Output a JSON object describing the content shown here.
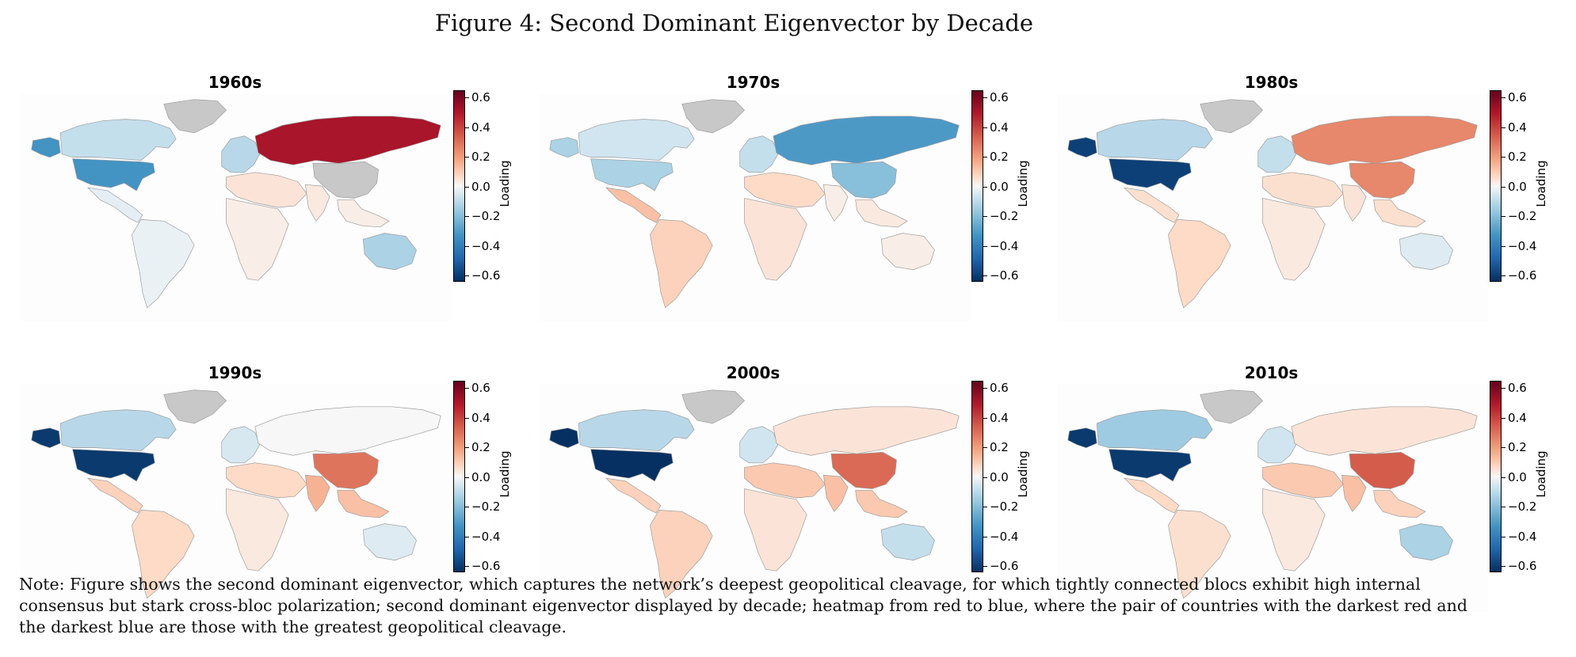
{
  "figure": {
    "title": "Figure 4: Second Dominant Eigenvector by Decade",
    "note": "Note: Figure shows the second dominant eigenvector, which captures the network’s deepest geopolitical cleavage, for which tightly connected blocs exhibit high internal consensus but stark cross-bloc polarization; second dominant eigenvector displayed by decade; heatmap from red to blue, where the pair of countries with the darkest red and the darkest blue are those with the greatest geopolitical cleavage."
  },
  "colorbar": {
    "label": "Loading",
    "ticks": [
      "0.6",
      "0.4",
      "0.2",
      "0.0",
      "−0.2",
      "−0.4",
      "−0.6"
    ],
    "range": [
      -0.65,
      0.65
    ],
    "colormap": "RdBu_r",
    "colors": {
      "dark_red": "#67001f",
      "neutral": "#f7f7f7",
      "dark_blue": "#053061",
      "no_data": "#c8c8c8"
    }
  },
  "panels": [
    {
      "title": "1960s",
      "regions": {
        "usa": -0.32,
        "canada": -0.08,
        "alaska": -0.32,
        "greenland": null,
        "latam": -0.03,
        "south_america": -0.02,
        "europe": -0.1,
        "russia": 0.5,
        "mena": 0.04,
        "africa": 0.02,
        "south_asia": 0.03,
        "china": null,
        "southeast_asia": 0.02,
        "australia": -0.12
      }
    },
    {
      "title": "1970s",
      "regions": {
        "usa": -0.12,
        "canada": -0.06,
        "alaska": -0.12,
        "greenland": null,
        "latam": 0.12,
        "south_america": 0.08,
        "europe": -0.08,
        "russia": -0.3,
        "mena": 0.06,
        "africa": 0.04,
        "south_asia": 0.02,
        "china": -0.18,
        "southeast_asia": 0.03,
        "australia": 0.02
      }
    },
    {
      "title": "1980s",
      "regions": {
        "usa": -0.6,
        "canada": -0.1,
        "alaska": -0.6,
        "greenland": null,
        "latam": 0.05,
        "south_america": 0.06,
        "europe": -0.08,
        "russia": 0.24,
        "mena": 0.05,
        "africa": 0.03,
        "south_asia": 0.04,
        "china": 0.24,
        "southeast_asia": 0.05,
        "australia": -0.04
      }
    },
    {
      "title": "1990s",
      "regions": {
        "usa": -0.62,
        "canada": -0.1,
        "alaska": -0.62,
        "greenland": null,
        "latam": 0.08,
        "south_america": 0.06,
        "europe": -0.05,
        "russia": 0.0,
        "mena": 0.06,
        "africa": 0.03,
        "south_asia": 0.15,
        "china": 0.28,
        "southeast_asia": 0.12,
        "australia": -0.04
      }
    },
    {
      "title": "2000s",
      "regions": {
        "usa": -0.65,
        "canada": -0.1,
        "alaska": -0.65,
        "greenland": null,
        "latam": 0.08,
        "south_america": 0.08,
        "europe": -0.06,
        "russia": 0.04,
        "mena": 0.1,
        "africa": 0.04,
        "south_asia": 0.12,
        "china": 0.3,
        "southeast_asia": 0.1,
        "australia": -0.08
      }
    },
    {
      "title": "2010s",
      "regions": {
        "usa": -0.62,
        "canada": -0.14,
        "alaska": -0.62,
        "greenland": null,
        "latam": 0.06,
        "south_america": 0.05,
        "europe": -0.06,
        "russia": 0.04,
        "mena": 0.1,
        "africa": 0.03,
        "south_asia": 0.12,
        "china": 0.33,
        "southeast_asia": 0.08,
        "australia": -0.12
      }
    }
  ]
}
